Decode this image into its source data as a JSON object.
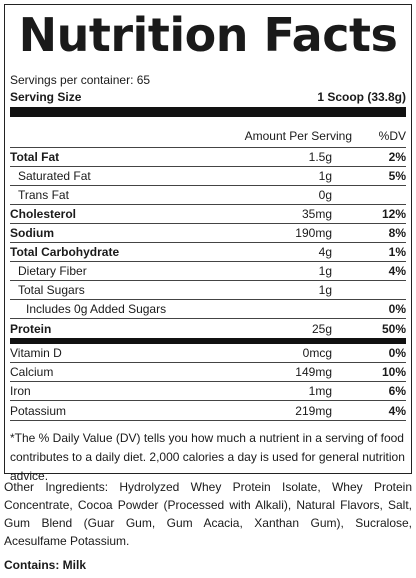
{
  "title": "Nutrition Facts",
  "servings_per_container": "Servings per container: 65",
  "serving_size_label": "Serving Size",
  "serving_size_value": "1 Scoop (33.8g)",
  "header": {
    "amount_label": "Amount Per Serving",
    "dv_label": "%DV"
  },
  "nutrients": [
    {
      "name": "Total Fat",
      "amount": "1.5g",
      "dv": "2%"
    },
    {
      "name": "Saturated Fat",
      "amount": "1g",
      "dv": "5%"
    },
    {
      "name": "Trans Fat",
      "amount": "0g",
      "dv": ""
    },
    {
      "name": "Cholesterol",
      "amount": "35mg",
      "dv": "12%"
    },
    {
      "name": "Sodium",
      "amount": "190mg",
      "dv": "8%"
    },
    {
      "name": "Total Carbohydrate",
      "amount": "4g",
      "dv": "1%"
    },
    {
      "name": "Dietary Fiber",
      "amount": "1g",
      "dv": "4%"
    },
    {
      "name": "Total Sugars",
      "amount": "1g",
      "dv": ""
    },
    {
      "name": "Includes 0g Added Sugars",
      "amount": "",
      "dv": "0%"
    },
    {
      "name": "Protein",
      "amount": "25g",
      "dv": "50%"
    }
  ],
  "vitamins": [
    {
      "name": "Vitamin D",
      "amount": "0mcg",
      "dv": "0%"
    },
    {
      "name": "Calcium",
      "amount": "149mg",
      "dv": "10%"
    },
    {
      "name": "Iron",
      "amount": "1mg",
      "dv": "6%"
    },
    {
      "name": "Potassium",
      "amount": "219mg",
      "dv": "4%"
    }
  ],
  "footnote": "*The % Daily Value (DV) tells you how much a nutrient in a serving of food contributes to a daily diet. 2,000 calories a day is used for general nutrition advice.",
  "other_ingredients": "Other Ingredients: Hydrolyzed Whey Protein Isolate, Whey Protein Concentrate, Cocoa Powder (Processed with Alkali), Natural Flavors, Salt, Gum Blend (Guar Gum, Gum Acacia, Xanthan Gum), Sucralose, Acesulfame Potassium.",
  "contains": "Contains: Milk"
}
